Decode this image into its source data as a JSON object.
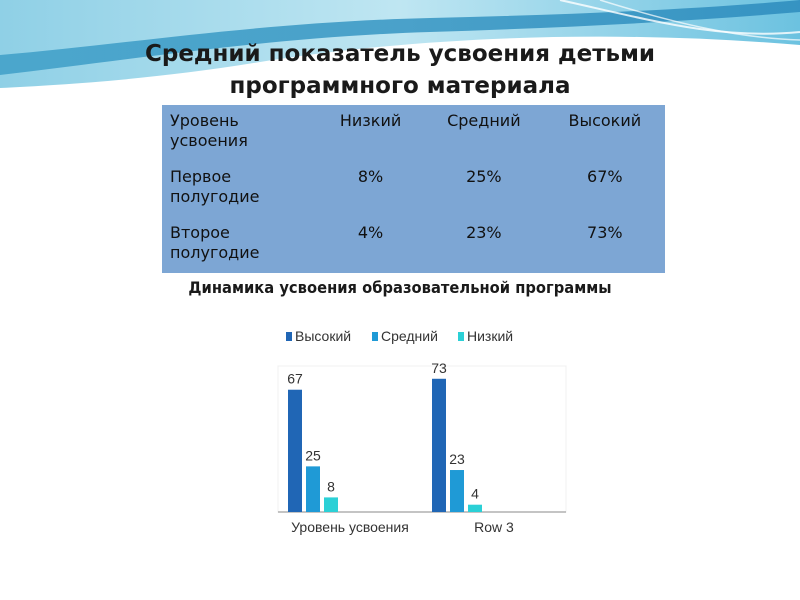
{
  "title": {
    "line1": "Средний  показатель усвоения детьми",
    "line2": "программного материала"
  },
  "table": {
    "header": [
      "Уровень усвоения",
      "Низкий",
      "Средний",
      "Высокий"
    ],
    "rows": [
      {
        "label": "Первое полугодие",
        "low": "8%",
        "mid": "25%",
        "high": "67%"
      },
      {
        "label": "Второе полугодие",
        "low": "4%",
        "mid": "23%",
        "high": "73%"
      }
    ],
    "background": "#7da6d4"
  },
  "chart_data": {
    "type": "bar",
    "title": "Динамика усвоения образовательной программы",
    "categories": [
      "Уровень усвоения",
      "Row 3"
    ],
    "series": [
      {
        "name": "Высокий",
        "values": [
          67,
          73
        ],
        "color": "#2066b5"
      },
      {
        "name": "Средний",
        "values": [
          25,
          23
        ],
        "color": "#1f9ad6"
      },
      {
        "name": "Низкий",
        "values": [
          8,
          4
        ],
        "color": "#2bd0d6"
      }
    ],
    "ylim": [
      0,
      80
    ],
    "grid": false,
    "legend": "top"
  }
}
